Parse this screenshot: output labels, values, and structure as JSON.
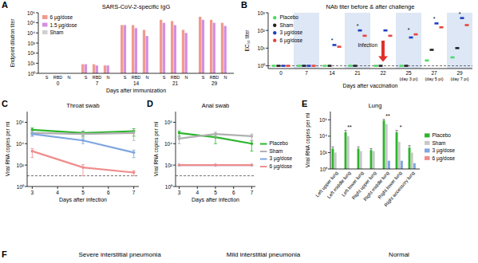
{
  "chart_data": [
    {
      "panel": "A",
      "type": "bar",
      "title": "SARS-CoV-2-specific IgG",
      "x_label": "Days after immunization",
      "y_label": "Endpoint dilution titer",
      "categories": [
        "S",
        "RBD",
        "N",
        "S",
        "RBD",
        "N",
        "S",
        "RBD",
        "N",
        "S",
        "RBD",
        "N",
        "S",
        "RBD",
        "N"
      ],
      "days": [
        0,
        7,
        14,
        21,
        29
      ],
      "series": [
        {
          "name": "6 µg/dose",
          "color": "#f19a8e",
          "values": [
            1,
            1,
            1,
            8,
            8,
            6,
            60000,
            60000,
            20000,
            200000,
            150000,
            20000,
            400000,
            200000,
            100000
          ]
        },
        {
          "name": "1.5 µg/dose",
          "color": "#d58fe0",
          "values": [
            1,
            1,
            1,
            8,
            6,
            6,
            60000,
            30000,
            5000,
            100000,
            60000,
            10000,
            200000,
            100000,
            50000
          ]
        },
        {
          "name": "Sham",
          "color": "#cfcfcf",
          "values": [
            1,
            1,
            1,
            1,
            1,
            1,
            1,
            1,
            1,
            1,
            1,
            1,
            1,
            1,
            1
          ]
        }
      ],
      "log": "y",
      "ylim": [
        1,
        1000000
      ],
      "yticks": [
        {
          "value": 1,
          "label": "10⁰"
        },
        {
          "value": 10,
          "label": "10¹"
        },
        {
          "value": 100,
          "label": "10²"
        },
        {
          "value": 1000,
          "label": "10³"
        },
        {
          "value": 10000,
          "label": "10⁴"
        },
        {
          "value": 100000,
          "label": "10⁵"
        },
        {
          "value": 1000000,
          "label": "10⁶"
        }
      ],
      "legend": "top-left"
    },
    {
      "panel": "B",
      "type": "scatter",
      "title": "NAb titer before & after challenge",
      "x_label": "Days after vaccination",
      "y_label": "EC₅₀ titer",
      "categories": [
        "0",
        "7",
        "14",
        "21",
        "22",
        "25",
        "27",
        "29"
      ],
      "sublabels": [
        null,
        null,
        null,
        null,
        null,
        "(day 3 pi)",
        "(day 5 pi)",
        "(day 7 pi)"
      ],
      "series": [
        {
          "name": "Placebo",
          "color": "#4cd964",
          "values": [
            1,
            1,
            1,
            1,
            1,
            1,
            2,
            3
          ]
        },
        {
          "name": "Sham",
          "color": "#222222",
          "values": [
            1,
            1,
            1,
            1,
            1,
            1,
            8,
            10
          ]
        },
        {
          "name": "3 µg/dose",
          "color": "#1f3fbf",
          "values": [
            1,
            1,
            15,
            100,
            100,
            40,
            250,
            500
          ]
        },
        {
          "name": "6 µg/dose",
          "color": "#e8453c",
          "values": [
            1,
            1,
            12,
            50,
            50,
            60,
            150,
            200
          ]
        }
      ],
      "significance": [
        null,
        null,
        "*",
        "*",
        null,
        "*",
        "*",
        "*"
      ],
      "annotations": [
        {
          "text": "Infection",
          "at": "22"
        }
      ],
      "detection_limit": 1,
      "marker": "dash",
      "log": "y",
      "ylim": [
        0.7,
        1000
      ],
      "yticks": [
        {
          "value": 1,
          "label": "10⁰"
        },
        {
          "value": 10,
          "label": "10¹"
        },
        {
          "value": 100,
          "label": "10²"
        },
        {
          "value": 1000,
          "label": "10³"
        }
      ],
      "legend": "top-left"
    },
    {
      "panel": "C",
      "type": "line",
      "title": "Throat swab",
      "x_label": "Days after infection",
      "y_label": "Viral RNA copies per ml",
      "x": [
        3,
        5,
        7
      ],
      "series": [
        {
          "name": "Placebo",
          "color": "#2db52d",
          "values": [
            200000,
            100000,
            150000
          ],
          "errors": [
            100000,
            50000,
            100000
          ]
        },
        {
          "name": "Sham",
          "color": "#b0b0b0",
          "values": [
            100000,
            80000,
            100000
          ],
          "errors": [
            50000,
            40000,
            80000
          ]
        },
        {
          "name": "3 µg/dose",
          "color": "#7fa6e0",
          "values": [
            80000,
            20000,
            1500
          ],
          "errors": [
            30000,
            10000,
            1000
          ]
        },
        {
          "name": "6 µg/dose",
          "color": "#f08c8c",
          "values": [
            2000,
            60,
            20
          ],
          "errors": [
            1500,
            50,
            10
          ]
        }
      ],
      "detection_limit": 10,
      "marker": "circle",
      "log": "y",
      "xlim": [
        2.8,
        7.2
      ],
      "xticks": [
        3,
        4,
        5,
        6,
        7
      ],
      "ylim": [
        1,
        10000000
      ],
      "yticks": [
        {
          "value": 1,
          "label": "10⁰"
        },
        {
          "value": 100,
          "label": "10²"
        },
        {
          "value": 10000,
          "label": "10⁴"
        },
        {
          "value": 1000000,
          "label": "10⁶"
        }
      ]
    },
    {
      "panel": "D",
      "type": "line",
      "title": "Anal swab",
      "x_label": "Days after infection",
      "y_label": "Viral RNA copies per ml",
      "x": [
        3,
        5,
        7
      ],
      "series": [
        {
          "name": "Placebo",
          "color": "#2db52d",
          "values": [
            100000,
            40000,
            10000
          ],
          "errors": [
            50000,
            30000,
            8000
          ]
        },
        {
          "name": "Sham",
          "color": "#b0b0b0",
          "values": [
            30000,
            80000,
            50000
          ],
          "errors": [
            20000,
            40000,
            30000
          ]
        },
        {
          "name": "3 µg/dose",
          "color": "#7fa6e0",
          "values": [
            100,
            100,
            100
          ]
        },
        {
          "name": "6 µg/dose",
          "color": "#f08c8c",
          "values": [
            100,
            100,
            100
          ]
        }
      ],
      "detection_limit": 10,
      "marker": "circle",
      "log": "y",
      "xlim": [
        2.8,
        7.2
      ],
      "xticks": [
        3,
        4,
        5,
        6,
        7
      ],
      "ylim": [
        1,
        10000000
      ],
      "yticks": [
        {
          "value": 1,
          "label": "10⁰"
        },
        {
          "value": 100,
          "label": "10²"
        },
        {
          "value": 10000,
          "label": "10⁴"
        },
        {
          "value": 1000000,
          "label": "10⁶"
        }
      ],
      "legend": "right"
    },
    {
      "panel": "E",
      "type": "bar",
      "title": "Lung",
      "y_label": "Viral RNA copies per ml",
      "categories": [
        "Left upper lung",
        "Left middle lung",
        "Left lower lung",
        "Right upper lung",
        "Right middle lung",
        "Right lower lung",
        "Right accessory lung"
      ],
      "series": [
        {
          "name": "Placebo",
          "color": "#2db52d",
          "values": [
            300,
            30000,
            300,
            200,
            800000,
            30000,
            400
          ],
          "errors": [
            200,
            20000,
            200,
            100,
            300000,
            20000,
            300
          ]
        },
        {
          "name": "Sham",
          "color": "#c8c8c8",
          "values": [
            100,
            10000,
            150,
            150,
            300000,
            2000,
            100
          ]
        },
        {
          "name": "3 µg/dose",
          "color": "#7fa6e0",
          "values": [
            1,
            1,
            1,
            1,
            10,
            10,
            5
          ]
        },
        {
          "name": "6 µg/dose",
          "color": "#f08c8c",
          "values": [
            1,
            1,
            1,
            1,
            1,
            1,
            1
          ]
        }
      ],
      "significance": [
        null,
        "**",
        null,
        null,
        "**",
        "*",
        null
      ],
      "log": "y",
      "ylim": [
        1,
        10000000
      ],
      "yticks": [
        {
          "value": 1,
          "label": "10⁰"
        },
        {
          "value": 100,
          "label": "10²"
        },
        {
          "value": 10000,
          "label": "10⁴"
        },
        {
          "value": 1000000,
          "label": "10⁶"
        }
      ],
      "legend": "right"
    }
  ],
  "panel_f": {
    "label": "F",
    "captions": [
      "Severe interstitial pneumonia",
      "Mild interstitial pneumonia",
      "Normal"
    ]
  }
}
